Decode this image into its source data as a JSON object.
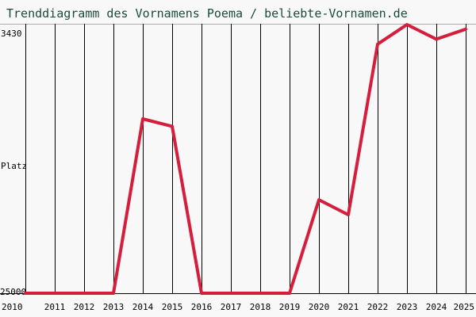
{
  "chart_data": {
    "type": "line",
    "title": "Trenddiagramm des Vornamens Poema / beliebte-Vornamen.de",
    "ylabel": "Platz",
    "y_tick_labels": {
      "top": "3430",
      "bottom": "25000"
    },
    "x": [
      "2010",
      "2011",
      "2012",
      "2013",
      "2014",
      "2015",
      "2016",
      "2017",
      "2018",
      "2019",
      "2020",
      "2021",
      "2022",
      "2023",
      "2024",
      "2025"
    ],
    "series": [
      {
        "values": [
          25000,
          25000,
          25000,
          25000,
          11000,
          11600,
          25000,
          25000,
          25000,
          25000,
          17500,
          18700,
          5000,
          3430,
          4600,
          3800
        ]
      }
    ],
    "ylim": [
      3430,
      25000
    ],
    "y_inverted": true,
    "grid": "vertical lines at each year",
    "colors": {
      "line": "#d41e3c",
      "grid": "#000000",
      "background": "#f8f8f8",
      "title": "#1a4a3a",
      "text": "#000000"
    }
  }
}
